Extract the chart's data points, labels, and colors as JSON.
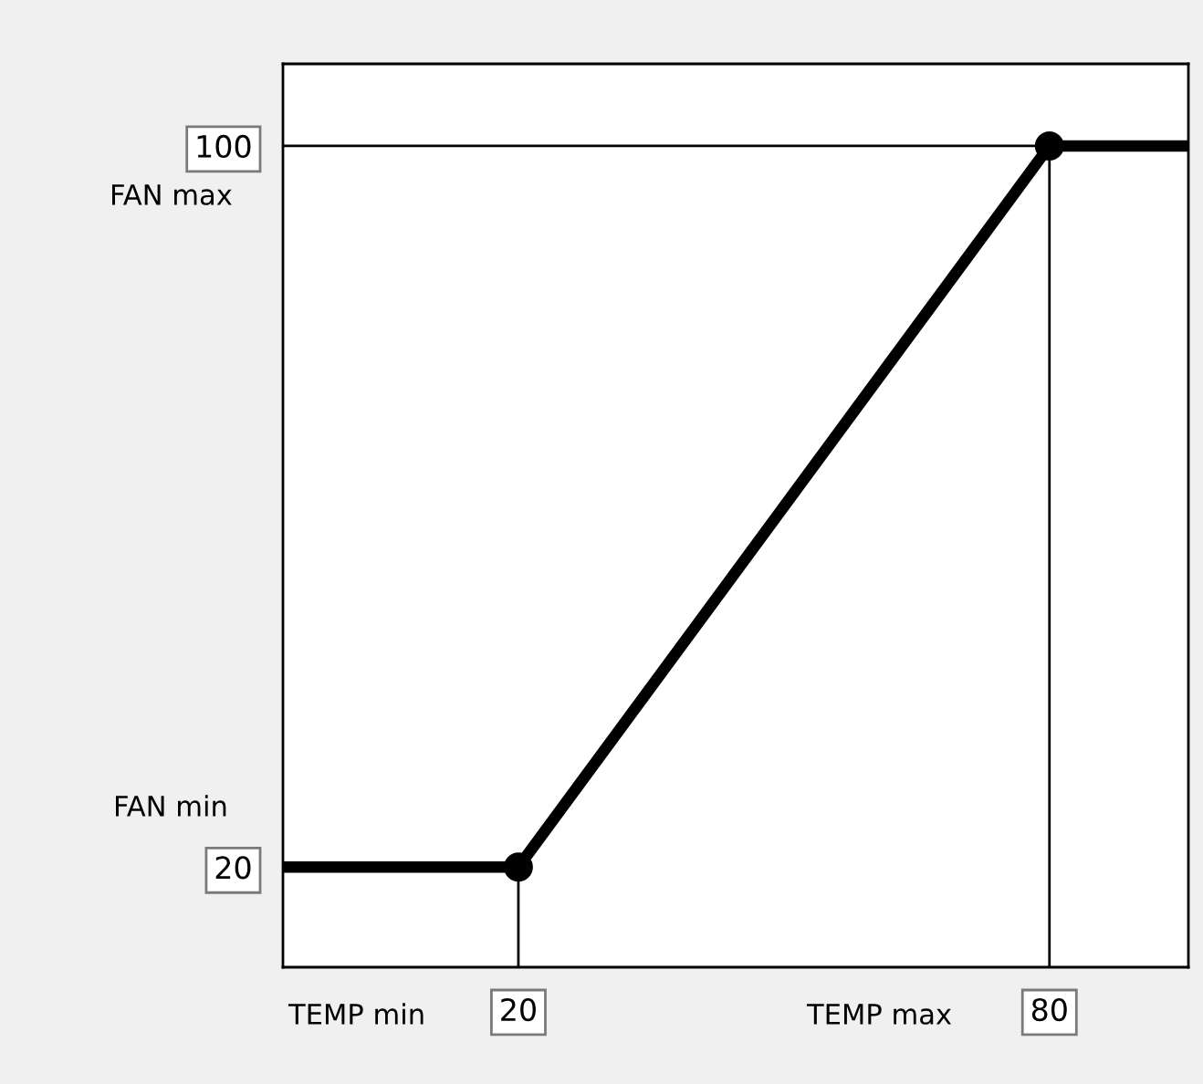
{
  "chart_data": {
    "type": "line",
    "xlim": [
      -6.6,
      95.7
    ],
    "ylim": [
      8.9,
      109.1
    ],
    "xticks": [
      20,
      80
    ],
    "yticks": [
      20,
      100
    ],
    "series": [
      {
        "color": "#000000",
        "x": [
          -6.6,
          20,
          80,
          95.7
        ],
        "values": [
          20,
          20,
          100,
          100
        ],
        "marker": "none"
      },
      {
        "type": "scatter",
        "color": "#000000",
        "x": [
          20,
          80
        ],
        "values": [
          20,
          100
        ],
        "marker": "circle"
      }
    ],
    "ref_lines": [
      {
        "axis": "y",
        "value": 100,
        "color": "#000000"
      },
      {
        "axis": "x",
        "value": 20,
        "color": "#000000"
      },
      {
        "axis": "x",
        "value": 80,
        "color": "#000000"
      }
    ],
    "annotations": [
      "FAN max",
      "FAN min",
      "TEMP min",
      "TEMP max"
    ],
    "grid": false,
    "legend": false
  }
}
